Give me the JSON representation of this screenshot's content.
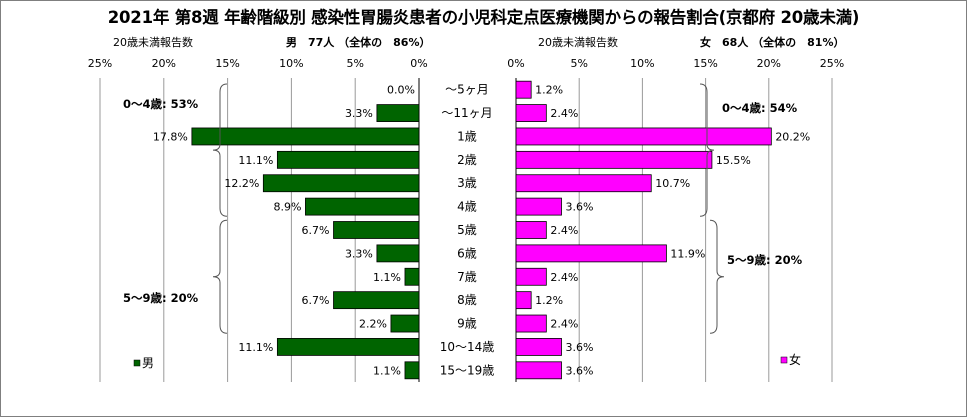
{
  "title": "2021年 第8週 年齢階級別 感染性胃腸炎患者の小児科定点医療機関からの報告割合(京都府 20歳未満)",
  "chart_data": {
    "type": "bar",
    "categories": [
      "～5ヶ月",
      "～11ヶ月",
      "1歳",
      "2歳",
      "3歳",
      "4歳",
      "5歳",
      "6歳",
      "7歳",
      "8歳",
      "9歳",
      "10～14歳",
      "15～19歳"
    ],
    "x_ticks": [
      "25%",
      "20%",
      "15%",
      "10%",
      "5%",
      "0%"
    ],
    "x_ticks_right": [
      "0%",
      "5%",
      "10%",
      "15%",
      "20%",
      "25%"
    ],
    "xlim": [
      0,
      25
    ],
    "male": {
      "axis_caption": "20歳未満報告数",
      "summary": "男　77人 （全体の　86%）",
      "legend": "男",
      "color": "#006400",
      "values": [
        0.0,
        3.3,
        17.8,
        11.1,
        12.2,
        8.9,
        6.7,
        3.3,
        1.1,
        6.7,
        2.2,
        11.1,
        1.1
      ],
      "labels": [
        "0.0%",
        "3.3%",
        "17.8%",
        "11.1%",
        "12.2%",
        "8.9%",
        "6.7%",
        "3.3%",
        "1.1%",
        "6.7%",
        "2.2%",
        "11.1%",
        "1.1%"
      ],
      "group_labels": [
        "0～4歳: 53%",
        "5～9歳: 20%"
      ]
    },
    "female": {
      "axis_caption": "20歳未満報告数",
      "summary": "女　68人 （全体の　81%）",
      "legend": "女",
      "color": "#ff00ff",
      "values": [
        1.2,
        2.4,
        20.2,
        15.5,
        10.7,
        3.6,
        2.4,
        11.9,
        2.4,
        1.2,
        2.4,
        3.6,
        3.6
      ],
      "labels": [
        "1.2%",
        "2.4%",
        "20.2%",
        "15.5%",
        "10.7%",
        "3.6%",
        "2.4%",
        "11.9%",
        "2.4%",
        "1.2%",
        "2.4%",
        "3.6%",
        "3.6%"
      ],
      "group_labels": [
        "0～4歳: 54%",
        "5～9歳: 20%"
      ]
    }
  }
}
